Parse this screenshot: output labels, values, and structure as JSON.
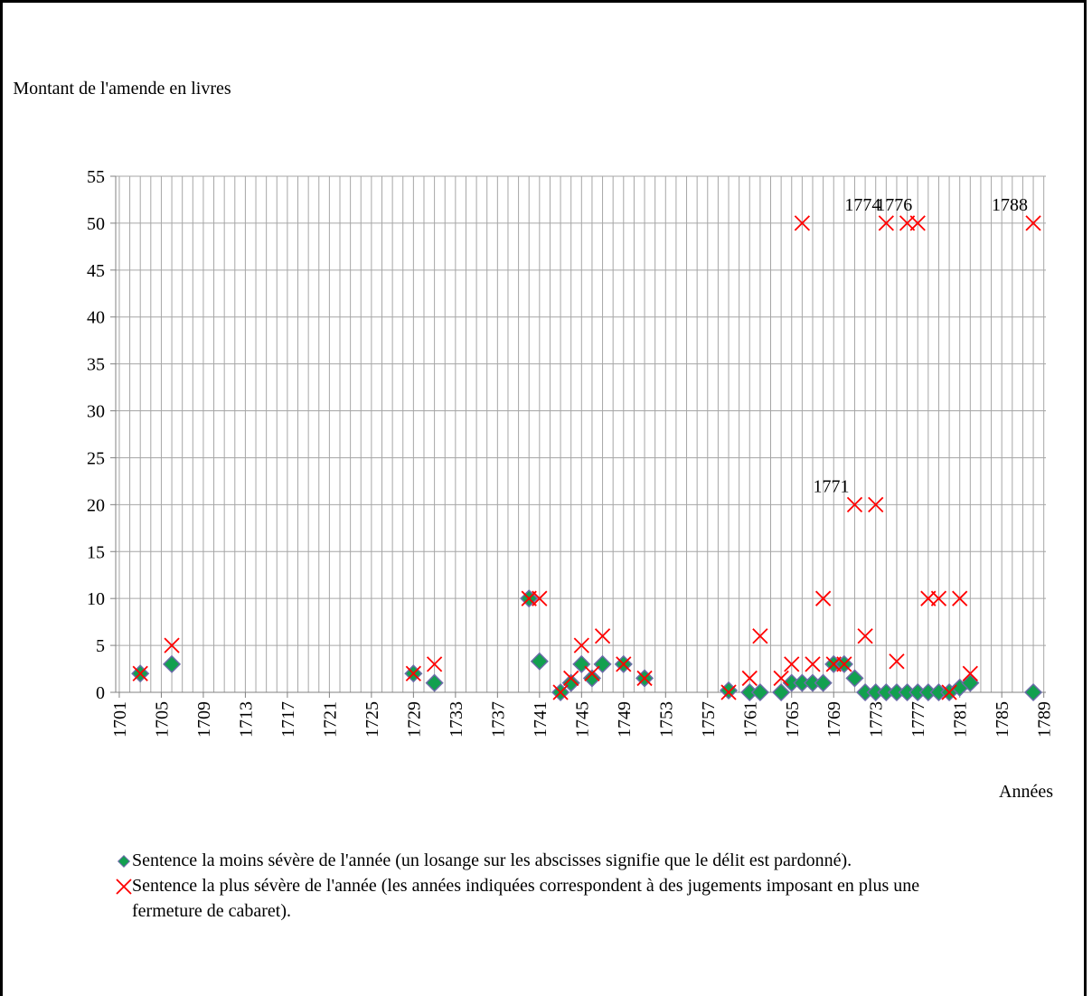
{
  "chart_data": {
    "type": "scatter",
    "y_label": "Montant de l'amende en livres",
    "x_label": "Années",
    "x": [
      1703,
      1706,
      1729,
      1731,
      1740,
      1741,
      1743,
      1744,
      1745,
      1746,
      1747,
      1749,
      1751,
      1759,
      1761,
      1762,
      1764,
      1765,
      1766,
      1767,
      1768,
      1769,
      1770,
      1771,
      1772,
      1773,
      1774,
      1775,
      1776,
      1777,
      1778,
      1779,
      1780,
      1781,
      1782,
      1788
    ],
    "series": [
      {
        "name": "Sentence la moins sévère de l'année (un losange sur les abscisses signifie que le délit est pardonné).",
        "color": "#12a04f",
        "marker": "diamond",
        "values": [
          2,
          3,
          2,
          1,
          10,
          3.3,
          0,
          1,
          3,
          1.5,
          3,
          3,
          1.5,
          0.2,
          0,
          0,
          0,
          1,
          1,
          1,
          1,
          3,
          3,
          1.5,
          0,
          0,
          0,
          0,
          0,
          0,
          0,
          0,
          0,
          0.5,
          1,
          0
        ]
      },
      {
        "name": "Sentence la plus sévère de l'année (les années indiquées correspondent à des jugements imposant en plus une fermeture de cabaret).",
        "color": "#ff0000",
        "marker": "cross",
        "values": [
          2,
          5,
          2,
          3,
          10,
          10,
          0,
          1.5,
          5,
          2,
          6,
          3,
          1.5,
          0,
          1.5,
          6,
          1.5,
          3,
          50,
          3,
          10,
          3,
          3,
          20,
          6,
          20,
          50,
          3.3,
          50,
          50,
          10,
          10,
          0,
          10,
          2,
          50
        ]
      }
    ],
    "annotations": [
      {
        "text": "1771",
        "x": 1771,
        "y": 20
      },
      {
        "text": "1774",
        "x": 1774,
        "y": 50
      },
      {
        "text": "1776",
        "x": 1777,
        "y": 50
      },
      {
        "text": "1788",
        "x": 1788,
        "y": 50
      }
    ],
    "xlim": [
      1700.66,
      1789.2
    ],
    "xticks": [
      1701,
      1705,
      1709,
      1713,
      1717,
      1721,
      1725,
      1729,
      1733,
      1737,
      1741,
      1745,
      1749,
      1753,
      1757,
      1761,
      1765,
      1769,
      1773,
      1777,
      1781,
      1785,
      1789
    ],
    "xminor": 1,
    "ylim": [
      0,
      55
    ],
    "yticks": [
      0,
      5,
      10,
      15,
      20,
      25,
      30,
      35,
      40,
      45,
      50,
      55
    ],
    "grid": true
  }
}
